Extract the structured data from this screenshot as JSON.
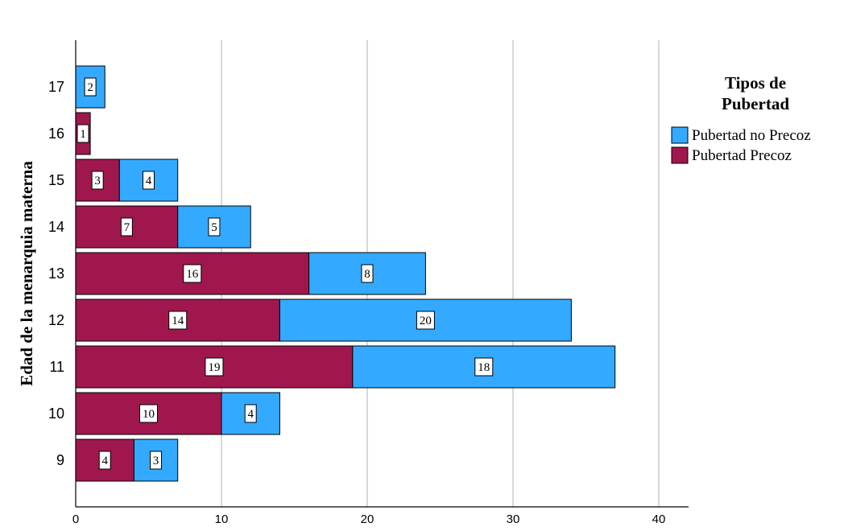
{
  "chart_data": {
    "type": "bar",
    "orientation": "horizontal",
    "stacked": true,
    "ylabel": "Edad de la menarquia materna",
    "xlabel": "",
    "categories": [
      "9",
      "10",
      "11",
      "12",
      "13",
      "14",
      "15",
      "16",
      "17"
    ],
    "x_ticks": [
      "0",
      "10",
      "20",
      "30",
      "40"
    ],
    "xlim": [
      0,
      42
    ],
    "grid": true,
    "legend": {
      "title_lines": [
        "Tipos de",
        "Pubertad"
      ],
      "placement": "right"
    },
    "series": [
      {
        "name": "Pubertad Precoz",
        "color": "#A0174E",
        "values": [
          4,
          10,
          19,
          14,
          16,
          7,
          3,
          1,
          0
        ]
      },
      {
        "name": "Pubertad no Precoz",
        "color": "#33AAFF",
        "values": [
          3,
          4,
          18,
          20,
          8,
          5,
          4,
          0,
          2
        ]
      }
    ]
  }
}
